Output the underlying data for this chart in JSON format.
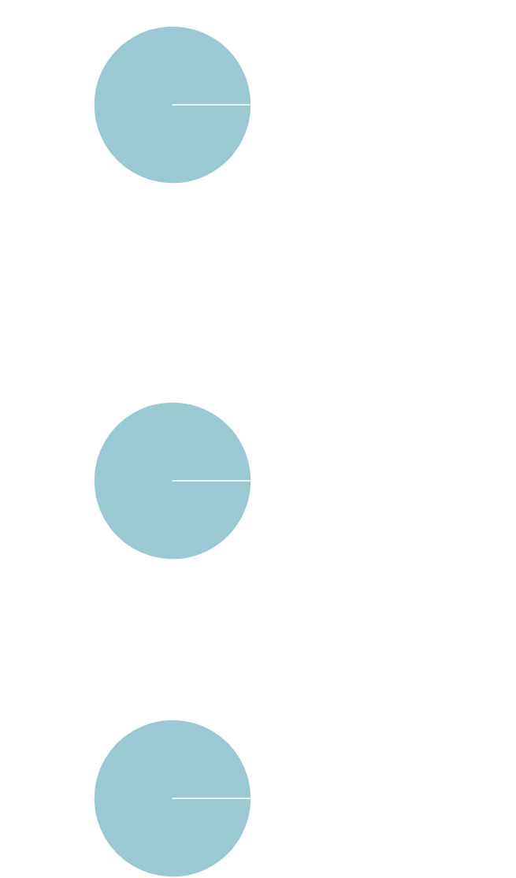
{
  "chart_data": [
    {
      "type": "pie",
      "categories": [
        null
      ],
      "values": [
        100
      ],
      "colors": [
        "#9ac8d3"
      ]
    },
    {
      "type": "pie",
      "categories": [
        null
      ],
      "values": [
        100
      ],
      "colors": [
        "#9ac8d3"
      ]
    },
    {
      "type": "pie",
      "categories": [
        null
      ],
      "values": [
        100
      ],
      "colors": [
        "#9ac8d3"
      ]
    }
  ]
}
